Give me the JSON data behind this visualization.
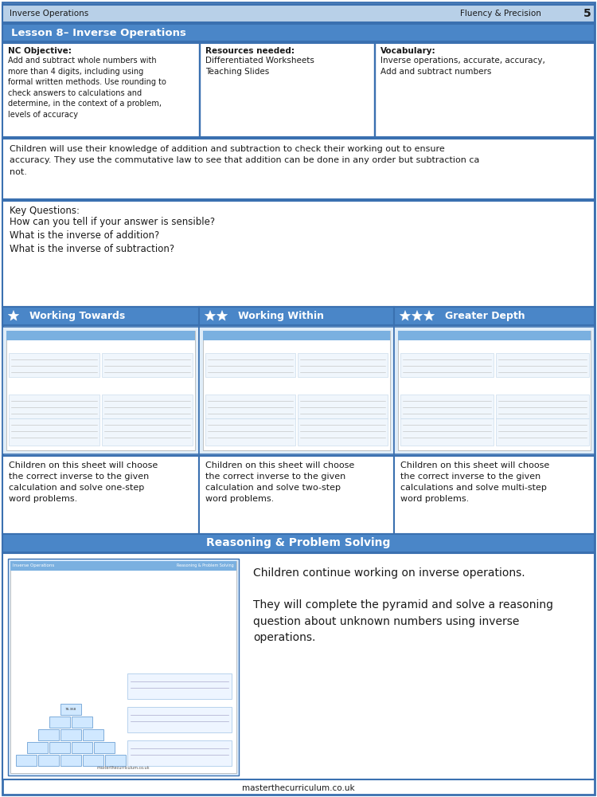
{
  "header_bg": "#b8d0e8",
  "title_bar_bg": "#4a86c8",
  "reasoning_bar_bg": "#4a86c8",
  "white": "#ffffff",
  "light_gray": "#f5f5f5",
  "dark_text": "#1a1a1a",
  "border_color": "#3a70b0",
  "worksheet_bg": "#ddeeff",
  "worksheet_inner": "#eef5ff",
  "worksheet_header": "#7ab0e0",
  "page_title_left": "Inverse Operations",
  "page_title_right": "Fluency & Precision",
  "page_number": "5",
  "lesson_title": "Lesson 8– Inverse Operations",
  "nc_objective_title": "NC Objective:",
  "nc_objective_text": "Add and subtract whole numbers with\nmore than 4 digits, including using\nformal written methods. Use rounding to\ncheck answers to calculations and\ndetermine, in the context of a problem,\nlevels of accuracy",
  "resources_title": "Resources needed:",
  "resources_text": "Differentiated Worksheets\nTeaching Slides",
  "vocab_title": "Vocabulary:",
  "vocab_text": "Inverse operations, accurate, accuracy,\nAdd and subtract numbers",
  "context_text": "Children will use their knowledge of addition and subtraction to check their working out to ensure\naccuracy. They use the commutative law to see that addition can be done in any order but subtraction ca\nnot.",
  "key_questions_title": "Key Questions:",
  "key_questions": [
    "How can you tell if your answer is sensible?",
    "What is the inverse of addition?",
    "What is the inverse of subtraction?"
  ],
  "col1_title": "Working Towards",
  "col2_title": "Working Within",
  "col3_title": "Greater Depth",
  "col1_stars": 1,
  "col2_stars": 2,
  "col3_stars": 3,
  "col1_desc": "Children on this sheet will choose\nthe correct inverse to the given\ncalculation and solve one-step\nword problems.",
  "col2_desc": "Children on this sheet will choose\nthe correct inverse to the given\ncalculation and solve two-step\nword problems.",
  "col3_desc": "Children on this sheet will choose\nthe correct inverse to the given\ncalculations and solve multi-step\nword problems.",
  "reasoning_title": "Reasoning & Problem Solving",
  "reasoning_text1": "Children continue working on inverse operations.",
  "reasoning_text2": "They will complete the pyramid and solve a reasoning\nquestion about unknown numbers using inverse\noperations.",
  "footer_text": "masterthecurriculum.co.uk"
}
